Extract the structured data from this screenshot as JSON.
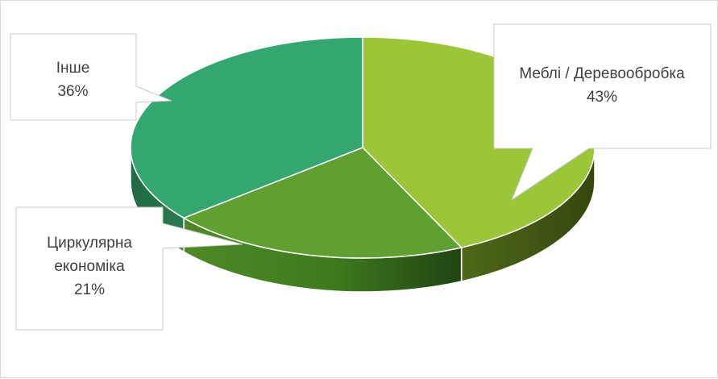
{
  "chart_data": {
    "type": "pie",
    "style": "3d",
    "legend": "none",
    "slices": [
      {
        "label": "Меблі / Деревообробка",
        "value": 43,
        "value_label": "43%",
        "color": "#9bc637"
      },
      {
        "label": "Циркулярна економіка",
        "value": 21,
        "value_label": "21%",
        "color": "#5fa030"
      },
      {
        "label": "Інше",
        "value": 36,
        "value_label": "36%",
        "color": "#34a670"
      }
    ],
    "callouts": [
      {
        "lines": [
          "Меблі / Деревообробка",
          "43%"
        ]
      },
      {
        "lines": [
          "Циркулярна",
          "економіка",
          "21%"
        ]
      },
      {
        "lines": [
          "Інше",
          "36%"
        ]
      }
    ]
  }
}
